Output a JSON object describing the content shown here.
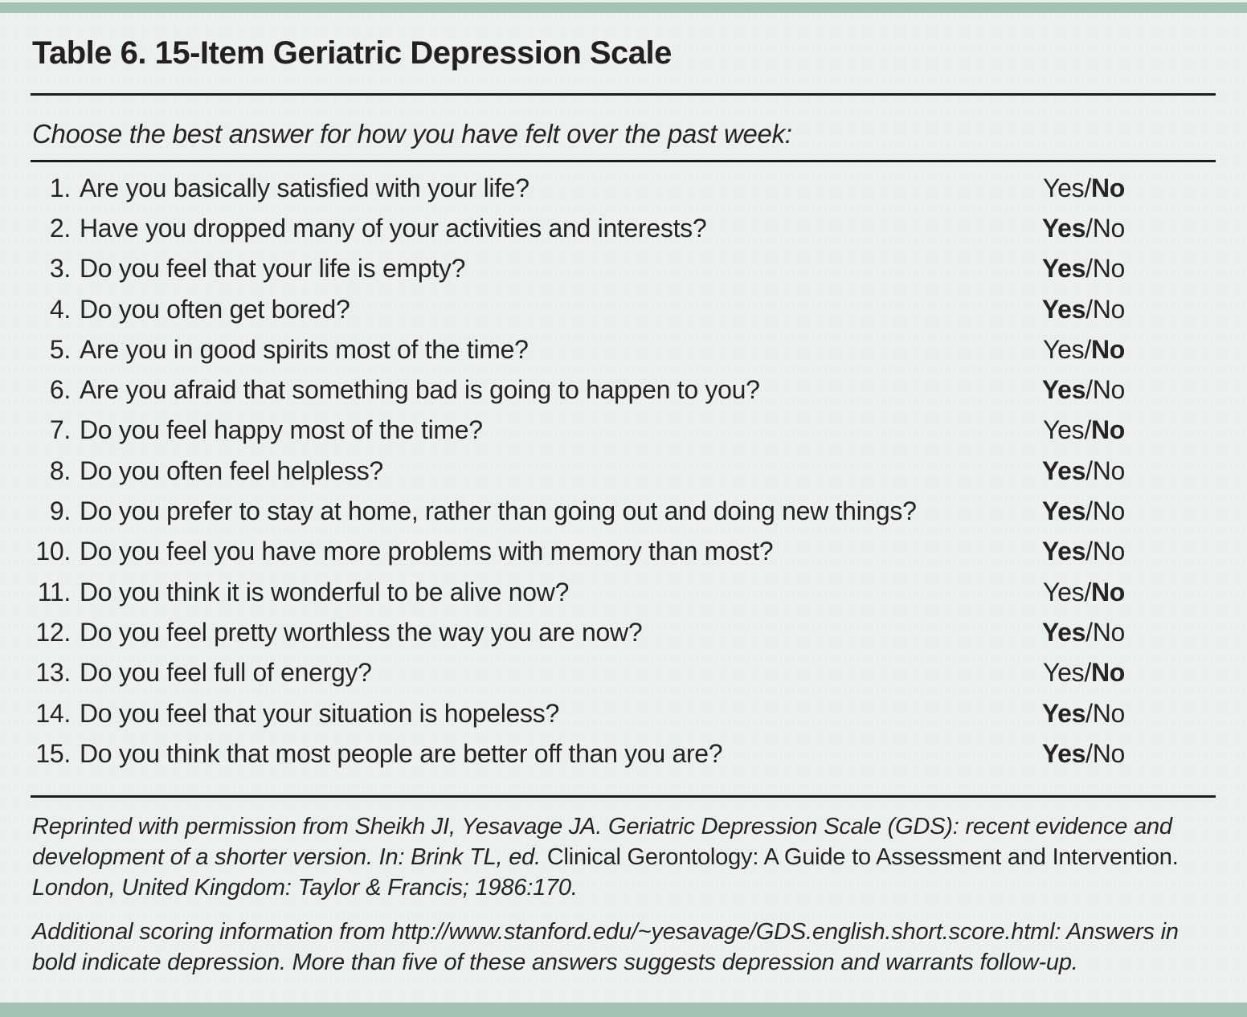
{
  "title": "Table 6. 15-Item Geriatric Depression Scale",
  "instruction": "Choose the best answer for how you have felt over the past week:",
  "answer_labels": {
    "yes": "Yes",
    "no": "No",
    "separator": "/"
  },
  "questions": [
    {
      "number": "1.",
      "text": "Are you basically satisfied with your life?",
      "bold_answer": "no"
    },
    {
      "number": "2.",
      "text": "Have you dropped many of your activities and interests?",
      "bold_answer": "yes"
    },
    {
      "number": "3.",
      "text": "Do you feel that your life is empty?",
      "bold_answer": "yes"
    },
    {
      "number": "4.",
      "text": "Do you often get bored?",
      "bold_answer": "yes"
    },
    {
      "number": "5.",
      "text": "Are you in good spirits most of the time?",
      "bold_answer": "no"
    },
    {
      "number": "6.",
      "text": "Are you afraid that something bad is going to happen to you?",
      "bold_answer": "yes"
    },
    {
      "number": "7.",
      "text": "Do you feel happy most of the time?",
      "bold_answer": "no"
    },
    {
      "number": "8.",
      "text": "Do you often feel helpless?",
      "bold_answer": "yes"
    },
    {
      "number": "9.",
      "text": "Do you prefer to stay at home, rather than going out and doing new things?",
      "bold_answer": "yes"
    },
    {
      "number": "10.",
      "text": "Do you feel you have more problems with memory than most?",
      "bold_answer": "yes"
    },
    {
      "number": "11.",
      "text": "Do you think it is wonderful to be alive now?",
      "bold_answer": "no"
    },
    {
      "number": "12.",
      "text": "Do you feel pretty worthless the way you are now?",
      "bold_answer": "yes"
    },
    {
      "number": "13.",
      "text": "Do you feel full of energy?",
      "bold_answer": "no"
    },
    {
      "number": "14.",
      "text": "Do you feel that your situation is hopeless?",
      "bold_answer": "yes"
    },
    {
      "number": "15.",
      "text": "Do you think that most people are better off than you are?",
      "bold_answer": "yes"
    }
  ],
  "footnotes": [
    {
      "segments": [
        {
          "text": "Reprinted with permission from Sheikh JI, Yesavage JA. Geriatric Depression Scale (GDS): recent evidence and development of a shorter version. In: Brink TL, ed. ",
          "italic": true
        },
        {
          "text": "Clinical Gerontology: A Guide to Assessment and Intervention. ",
          "italic": false
        },
        {
          "text": "London, United Kingdom: Taylor & Francis; 1986:170.",
          "italic": true
        }
      ]
    },
    {
      "segments": [
        {
          "text": "Additional scoring information from http://www.stanford.edu/~yesavage/GDS.english.short.score.html: Answers in bold indicate depression. More than five of these answers suggests depression and warrants follow-up.",
          "italic": true
        }
      ]
    }
  ],
  "colors": {
    "accent_bar": "#a3c3b5",
    "background": "#edf1ee",
    "text": "#272324",
    "rule": "#1e1c1c"
  }
}
